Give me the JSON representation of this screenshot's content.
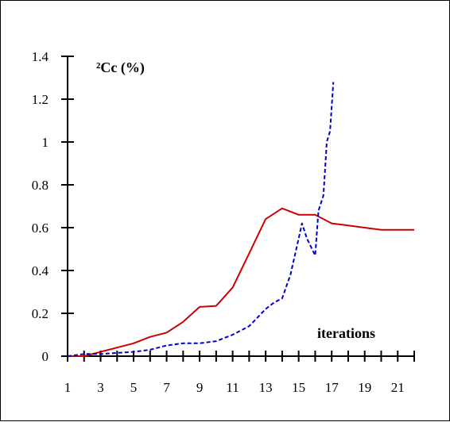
{
  "chart_data": {
    "type": "line",
    "title": "²Cc  (%)",
    "xlabel": "iterations",
    "ylabel": "",
    "x": [
      1,
      2,
      3,
      4,
      5,
      6,
      7,
      8,
      9,
      10,
      11,
      12,
      13,
      14,
      15,
      16,
      17,
      18,
      19,
      20,
      21,
      22
    ],
    "x_tick_labels": [
      "1",
      "3",
      "5",
      "7",
      "9",
      "11",
      "13",
      "15",
      "17",
      "19",
      "21"
    ],
    "y_tick_labels": [
      "0",
      "0.2",
      "0.4",
      "0.6",
      "0.8",
      "1",
      "1.2",
      "1.4"
    ],
    "xlim": [
      1,
      22
    ],
    "ylim": [
      0,
      1.4
    ],
    "grid": false,
    "legend": "none",
    "series": [
      {
        "style": "solid",
        "color": "#cc0000",
        "points": [
          [
            1,
            0
          ],
          [
            2,
            0
          ],
          [
            3,
            0.02
          ],
          [
            4,
            0.04
          ],
          [
            5,
            0.06
          ],
          [
            6,
            0.09
          ],
          [
            7,
            0.11
          ],
          [
            8,
            0.16
          ],
          [
            9,
            0.23
          ],
          [
            10,
            0.235
          ],
          [
            11,
            0.32
          ],
          [
            12,
            0.48
          ],
          [
            13,
            0.64
          ],
          [
            14,
            0.69
          ],
          [
            15,
            0.66
          ],
          [
            16,
            0.66
          ],
          [
            17,
            0.62
          ],
          [
            18,
            0.61
          ],
          [
            19,
            0.6
          ],
          [
            20,
            0.59
          ],
          [
            21,
            0.59
          ],
          [
            22,
            0.59
          ]
        ]
      },
      {
        "style": "dashed",
        "color": "#0000cc",
        "points": [
          [
            1,
            0
          ],
          [
            2,
            0.01
          ],
          [
            3,
            0.01
          ],
          [
            4,
            0.015
          ],
          [
            5,
            0.02
          ],
          [
            6,
            0.03
          ],
          [
            7,
            0.05
          ],
          [
            8,
            0.06
          ],
          [
            9,
            0.06
          ],
          [
            10,
            0.07
          ],
          [
            11,
            0.1
          ],
          [
            12,
            0.14
          ],
          [
            13,
            0.22
          ],
          [
            13.5,
            0.25
          ],
          [
            14,
            0.27
          ],
          [
            14.5,
            0.38
          ],
          [
            15,
            0.55
          ],
          [
            15.2,
            0.62
          ],
          [
            15.5,
            0.55
          ],
          [
            16,
            0.47
          ],
          [
            16.2,
            0.68
          ],
          [
            16.5,
            0.75
          ],
          [
            16.7,
            1.0
          ],
          [
            16.9,
            1.05
          ],
          [
            17.1,
            1.28
          ]
        ]
      }
    ]
  }
}
